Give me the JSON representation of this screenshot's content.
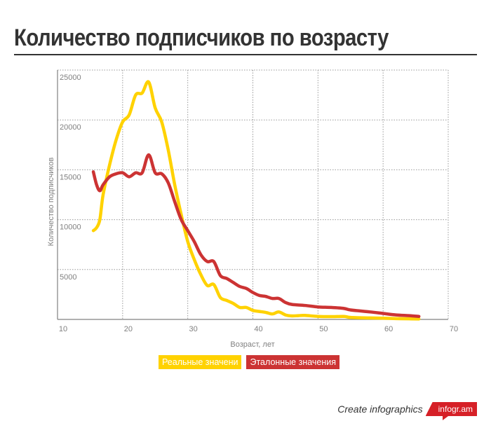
{
  "title": "Количество подписчиков по возрасту",
  "colors": {
    "title": "#333333",
    "real": "#ffd200",
    "reference": "#cc3333",
    "grid": "#999999",
    "axis": "#808080",
    "brand": "#d62027"
  },
  "legend": {
    "real_label": "Реальные значени",
    "reference_label": "Эталонные значения"
  },
  "branding": {
    "text": "Create infographics",
    "badge": "infogr.am"
  },
  "chart_data": {
    "type": "line",
    "title": "Количество подписчиков по возрасту",
    "xlabel": "Возраст, лет",
    "ylabel": "Количество подписчиков",
    "xlim": [
      10,
      70
    ],
    "ylim": [
      0,
      25000
    ],
    "x_ticks": [
      10,
      20,
      30,
      40,
      50,
      60,
      70
    ],
    "y_ticks": [
      5000,
      10000,
      15000,
      20000,
      25000
    ],
    "grid": true,
    "legend_position": "bottom",
    "series": [
      {
        "name": "Реальные значени",
        "color": "#ffd200",
        "points": [
          [
            15.5,
            8900
          ],
          [
            16,
            9200
          ],
          [
            16.5,
            10000
          ],
          [
            17,
            12500
          ],
          [
            18,
            15500
          ],
          [
            19,
            18000
          ],
          [
            20,
            19800
          ],
          [
            21,
            20500
          ],
          [
            22,
            22500
          ],
          [
            23,
            22700
          ],
          [
            24,
            23800
          ],
          [
            25,
            21200
          ],
          [
            26,
            19800
          ],
          [
            27,
            17000
          ],
          [
            28,
            13500
          ],
          [
            29,
            10500
          ],
          [
            30,
            7800
          ],
          [
            31,
            6000
          ],
          [
            32,
            4500
          ],
          [
            33,
            3400
          ],
          [
            34,
            3500
          ],
          [
            35,
            2200
          ],
          [
            36,
            1900
          ],
          [
            37,
            1600
          ],
          [
            38,
            1200
          ],
          [
            39,
            1200
          ],
          [
            40,
            900
          ],
          [
            41,
            800
          ],
          [
            42,
            700
          ],
          [
            43,
            550
          ],
          [
            44,
            750
          ],
          [
            45,
            450
          ],
          [
            46,
            350
          ],
          [
            47,
            380
          ],
          [
            48,
            400
          ],
          [
            50,
            300
          ],
          [
            52,
            280
          ],
          [
            54,
            300
          ],
          [
            55,
            200
          ],
          [
            58,
            150
          ],
          [
            60,
            120
          ],
          [
            62,
            80
          ],
          [
            64,
            60
          ],
          [
            65.5,
            40
          ]
        ]
      },
      {
        "name": "Эталонные значения",
        "color": "#cc3333",
        "points": [
          [
            15.5,
            14800
          ],
          [
            16,
            13500
          ],
          [
            16.5,
            12900
          ],
          [
            17,
            13500
          ],
          [
            18,
            14300
          ],
          [
            19,
            14600
          ],
          [
            20,
            14700
          ],
          [
            21,
            14300
          ],
          [
            22,
            14700
          ],
          [
            23,
            14700
          ],
          [
            24,
            16500
          ],
          [
            25,
            14700
          ],
          [
            26,
            14600
          ],
          [
            27,
            13700
          ],
          [
            28,
            11800
          ],
          [
            29,
            10000
          ],
          [
            30,
            8900
          ],
          [
            31,
            7800
          ],
          [
            32,
            6500
          ],
          [
            33,
            5800
          ],
          [
            34,
            5800
          ],
          [
            35,
            4400
          ],
          [
            36,
            4100
          ],
          [
            37,
            3700
          ],
          [
            38,
            3300
          ],
          [
            39,
            3100
          ],
          [
            40,
            2700
          ],
          [
            41,
            2400
          ],
          [
            42,
            2300
          ],
          [
            43,
            2100
          ],
          [
            44,
            2100
          ],
          [
            45,
            1700
          ],
          [
            46,
            1500
          ],
          [
            48,
            1400
          ],
          [
            50,
            1250
          ],
          [
            52,
            1200
          ],
          [
            54,
            1100
          ],
          [
            55,
            950
          ],
          [
            58,
            750
          ],
          [
            60,
            600
          ],
          [
            62,
            450
          ],
          [
            64,
            380
          ],
          [
            65.5,
            300
          ]
        ]
      }
    ]
  }
}
